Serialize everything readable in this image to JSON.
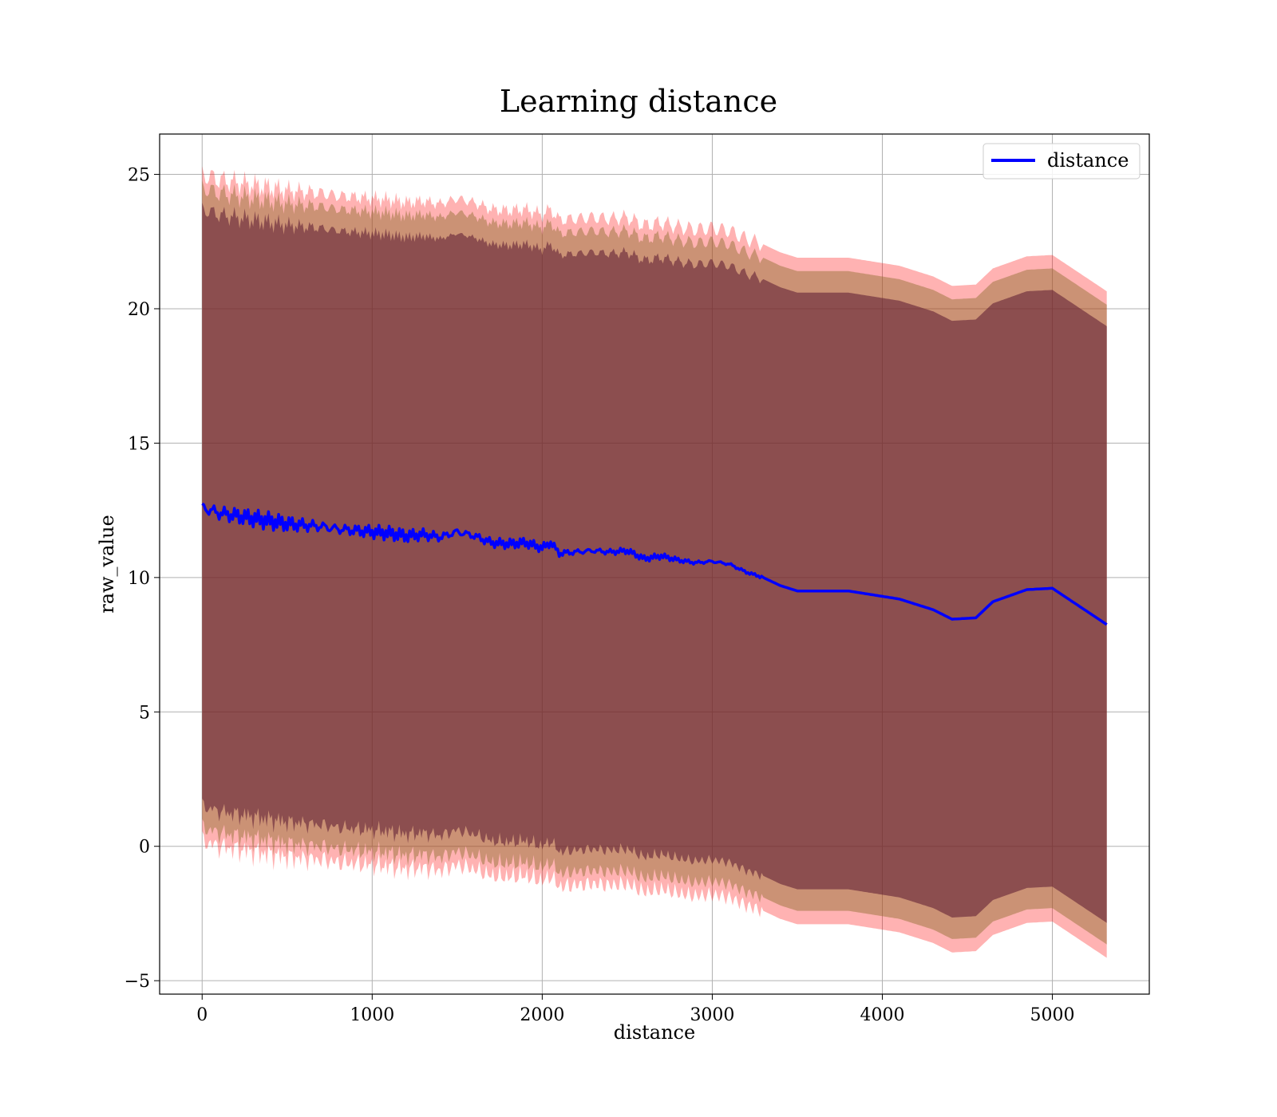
{
  "chart_data": {
    "type": "line",
    "title": "Learning distance",
    "xlabel": "distance",
    "ylabel": "raw_value",
    "xlim": [
      -250,
      5570
    ],
    "ylim": [
      -5.5,
      26.5
    ],
    "xticks": [
      0,
      1000,
      2000,
      3000,
      4000,
      5000
    ],
    "yticks": [
      -5,
      0,
      5,
      10,
      15,
      20,
      25
    ],
    "ytick_labels": [
      "−5",
      "0",
      "5",
      "10",
      "15",
      "20",
      "25"
    ],
    "grid": true,
    "legend_position": "top-right",
    "colors": {
      "line": "#0000ff",
      "outer_band": "#ff0000",
      "middle_band": "#8b6b2a",
      "inner_band": "#5a1630"
    },
    "series": [
      {
        "name": "distance",
        "x": [
          0,
          50,
          100,
          200,
          300,
          400,
          500,
          600,
          700,
          800,
          900,
          1000,
          1100,
          1200,
          1300,
          1400,
          1500,
          1600,
          1700,
          1800,
          1900,
          2000,
          2050,
          2100,
          2200,
          2300,
          2400,
          2500,
          2600,
          2700,
          2800,
          2900,
          3000,
          3100,
          3200,
          3300,
          3400,
          3500,
          3600,
          3700,
          3800,
          3900,
          4000,
          4100,
          4200,
          4300,
          4410,
          4550,
          4650,
          4850,
          5000,
          5320
        ],
        "y": [
          12.6,
          12.5,
          12.4,
          12.3,
          12.2,
          12.1,
          12.0,
          11.95,
          11.9,
          11.8,
          11.75,
          11.7,
          11.65,
          11.55,
          11.6,
          11.5,
          11.7,
          11.55,
          11.3,
          11.25,
          11.3,
          11.1,
          11.3,
          10.9,
          10.95,
          11.0,
          10.95,
          11.0,
          10.7,
          10.8,
          10.65,
          10.55,
          10.6,
          10.5,
          10.2,
          10.0,
          9.7,
          9.5,
          9.5,
          9.5,
          9.5,
          9.4,
          9.3,
          9.2,
          9.0,
          8.8,
          8.45,
          8.5,
          9.1,
          9.55,
          9.6,
          8.25
        ]
      }
    ],
    "band_offsets": {
      "outer_upper": 12.4,
      "outer_lower": -12.4,
      "middle_upper": 11.9,
      "middle_lower": -11.9,
      "inner_upper": 11.1,
      "inner_lower": -11.1
    }
  },
  "legend": {
    "label": "distance"
  }
}
